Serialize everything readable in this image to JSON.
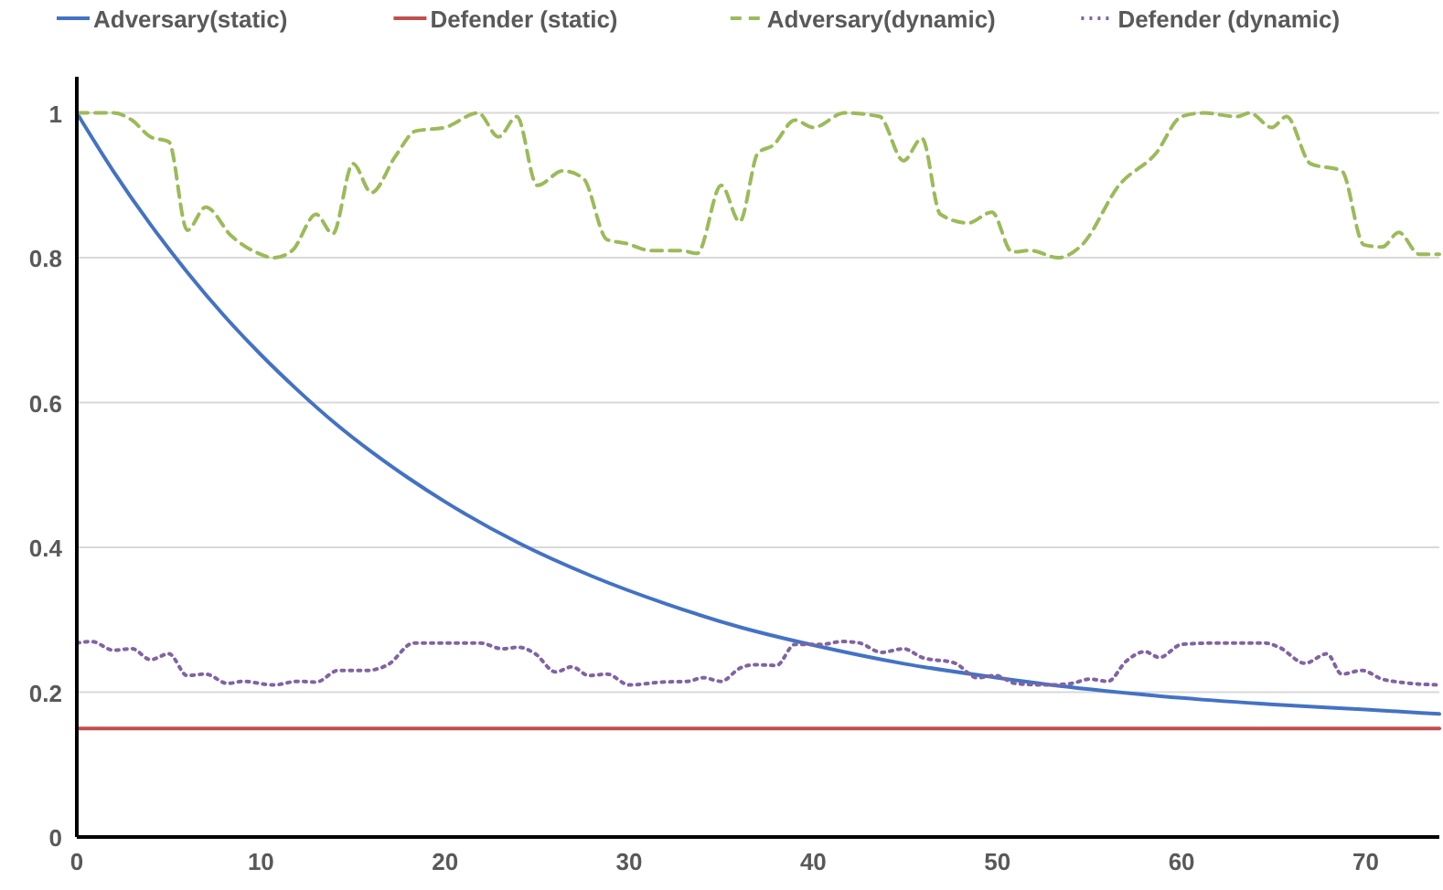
{
  "chart_data": {
    "type": "line",
    "xlim": [
      0,
      74
    ],
    "xticks": [
      0,
      10,
      20,
      30,
      40,
      50,
      60,
      70
    ],
    "ylim": [
      0,
      1.05
    ],
    "yticks": [
      0,
      {
        "value": 0.2,
        "label": "0.2"
      },
      {
        "value": 0.4,
        "label": "0.4"
      },
      {
        "value": 0.6,
        "label": "0.6"
      },
      {
        "value": 0.8,
        "label": "0.8"
      },
      1
    ],
    "grid": "y",
    "legend": "top",
    "marker": "none",
    "series": [
      {
        "name": "Adversary(static)",
        "color": "#4472c4",
        "line_style": "solid",
        "x": [
          0,
          2,
          4,
          6,
          8,
          10,
          12,
          14,
          16,
          18,
          20,
          24,
          28,
          32,
          36,
          40,
          45,
          50,
          55,
          60,
          65,
          70,
          74
        ],
        "values": [
          1.0,
          0.919,
          0.846,
          0.78,
          0.72,
          0.666,
          0.617,
          0.572,
          0.532,
          0.496,
          0.463,
          0.406,
          0.36,
          0.322,
          0.29,
          0.265,
          0.239,
          0.22,
          0.204,
          0.192,
          0.183,
          0.176,
          0.17
        ]
      },
      {
        "name": "Defender (static)",
        "color": "#c0504d",
        "line_style": "solid",
        "x": [
          0,
          74
        ],
        "values": [
          0.15,
          0.15
        ]
      },
      {
        "name": "Adversary(dynamic)",
        "color": "#9bbb59",
        "line_style": "dashed",
        "x": [
          0,
          2,
          3,
          4,
          5,
          6,
          7,
          8.4,
          9.7,
          10.7,
          11.7,
          13,
          13.9,
          15,
          16,
          17.3,
          18.4,
          20,
          21.8,
          22.9,
          23.9,
          25,
          26.4,
          27.5,
          28.8,
          29.8,
          31.2,
          32.8,
          33.7,
          35,
          36,
          37,
          37.8,
          39,
          40,
          41.7,
          43.6,
          44.9,
          45.9,
          46.9,
          48.4,
          49.7,
          50.8,
          51.8,
          53.3,
          54.6,
          56.6,
          58.6,
          60,
          61.2,
          63,
          63.7,
          64.9,
          65.7,
          67,
          68.7,
          69.9,
          70.9,
          71.8,
          72.9,
          74
        ],
        "values": [
          1.0,
          1.0,
          0.99,
          0.967,
          0.96,
          0.838,
          0.87,
          0.83,
          0.808,
          0.8,
          0.81,
          0.86,
          0.833,
          0.93,
          0.89,
          0.94,
          0.975,
          0.98,
          1.0,
          0.967,
          0.995,
          0.9,
          0.92,
          0.91,
          0.825,
          0.82,
          0.81,
          0.81,
          0.806,
          0.9,
          0.85,
          0.945,
          0.955,
          0.99,
          0.98,
          1.0,
          0.995,
          0.934,
          0.965,
          0.86,
          0.848,
          0.863,
          0.808,
          0.81,
          0.8,
          0.818,
          0.9,
          0.944,
          0.995,
          1.0,
          0.995,
          1.0,
          0.98,
          0.995,
          0.93,
          0.92,
          0.818,
          0.815,
          0.835,
          0.805,
          0.805
        ]
      },
      {
        "name": "Defender (dynamic)",
        "color": "#8064a2",
        "line_style": "dotted",
        "x": [
          0,
          0.8,
          2,
          3,
          4,
          5,
          6,
          7,
          8.2,
          9,
          10.7,
          12,
          13,
          14.2,
          15.7,
          16.9,
          18.3,
          20,
          21.9,
          23.1,
          24,
          24.9,
          26,
          26.9,
          27.8,
          28.8,
          30,
          31.8,
          33.2,
          34,
          35,
          36,
          36.8,
          38,
          39,
          40.4,
          41.6,
          42.5,
          43.7,
          44.9,
          45.9,
          47.7,
          48.9,
          49.9,
          51,
          52.7,
          54,
          55,
          56,
          57,
          58,
          58.8,
          60,
          61.9,
          64.5,
          65.3,
          66.7,
          67.9,
          68.7,
          69.8,
          70.9,
          71.8,
          74
        ],
        "values": [
          0.268,
          0.27,
          0.258,
          0.26,
          0.245,
          0.253,
          0.223,
          0.225,
          0.212,
          0.215,
          0.21,
          0.215,
          0.214,
          0.23,
          0.23,
          0.238,
          0.268,
          0.268,
          0.268,
          0.26,
          0.262,
          0.253,
          0.228,
          0.235,
          0.223,
          0.225,
          0.21,
          0.214,
          0.215,
          0.22,
          0.215,
          0.233,
          0.238,
          0.237,
          0.266,
          0.266,
          0.27,
          0.268,
          0.255,
          0.26,
          0.248,
          0.24,
          0.22,
          0.223,
          0.212,
          0.21,
          0.212,
          0.218,
          0.215,
          0.243,
          0.256,
          0.248,
          0.266,
          0.268,
          0.268,
          0.262,
          0.24,
          0.253,
          0.225,
          0.23,
          0.218,
          0.214,
          0.21
        ]
      }
    ]
  }
}
